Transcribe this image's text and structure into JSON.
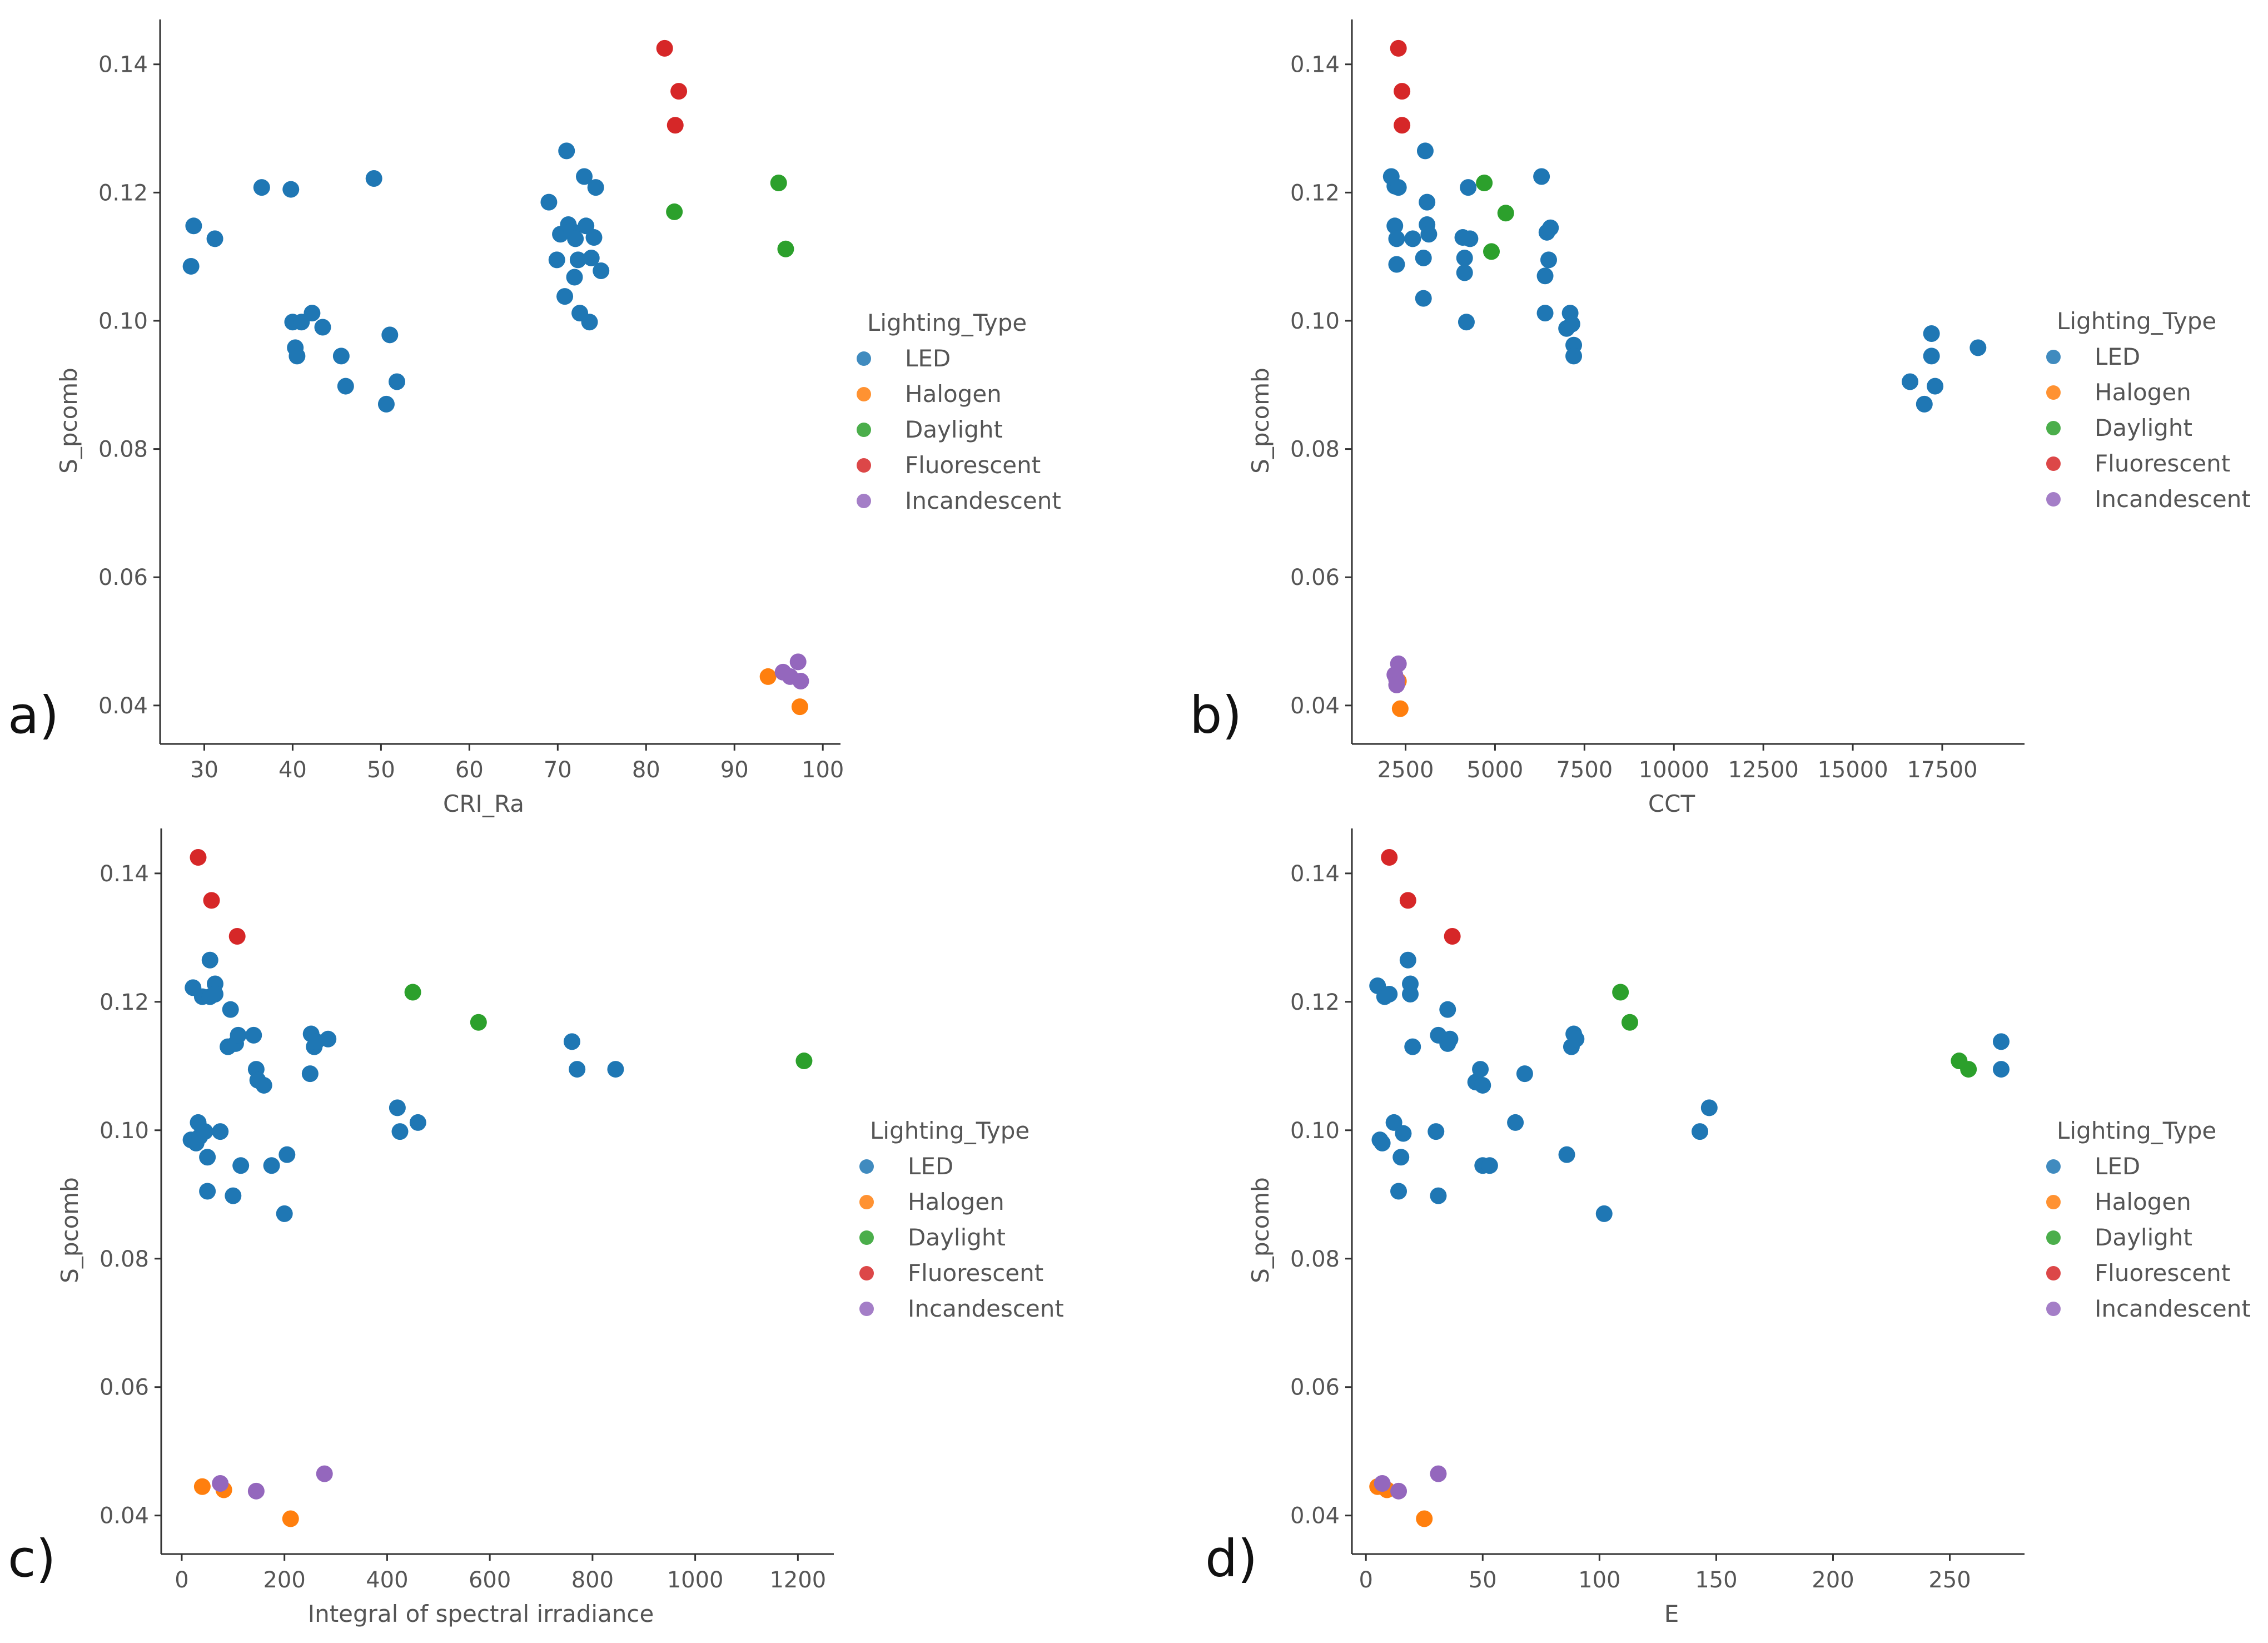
{
  "legend": {
    "title": "Lighting_Type",
    "entries": [
      {
        "name": "LED",
        "color": "#1f77b4"
      },
      {
        "name": "Halogen",
        "color": "#ff7f0e"
      },
      {
        "name": "Daylight",
        "color": "#2ca02c"
      },
      {
        "name": "Fluorescent",
        "color": "#d62728"
      },
      {
        "name": "Incandescent",
        "color": "#9467bd"
      }
    ]
  },
  "chart_data": [
    {
      "panel": "a)",
      "type": "scatter",
      "xlabel": "CRI_Ra",
      "ylabel": "S_pcomb",
      "xlim": [
        25,
        102
      ],
      "ylim": [
        0.034,
        0.147
      ],
      "xticks": [
        30,
        40,
        50,
        60,
        70,
        80,
        90,
        100
      ],
      "xtick_labels": [
        "30",
        "40",
        "50",
        "60",
        "70",
        "80",
        "90",
        "100"
      ],
      "yticks": [
        0.04,
        0.06,
        0.08,
        0.1,
        0.12,
        0.14
      ],
      "ytick_labels": [
        "0.04",
        "0.06",
        "0.08",
        "0.10",
        "0.12",
        "0.14"
      ],
      "series": [
        {
          "name": "LED",
          "points": [
            [
              28.5,
              0.1085
            ],
            [
              28.8,
              0.1148
            ],
            [
              31.2,
              0.1128
            ],
            [
              36.5,
              0.1208
            ],
            [
              39.8,
              0.1205
            ],
            [
              40.0,
              0.0998
            ],
            [
              40.3,
              0.0958
            ],
            [
              40.5,
              0.0945
            ],
            [
              41.0,
              0.0998
            ],
            [
              42.2,
              0.1012
            ],
            [
              43.4,
              0.099
            ],
            [
              45.5,
              0.0945
            ],
            [
              46.0,
              0.0898
            ],
            [
              49.2,
              0.1222
            ],
            [
              50.6,
              0.087
            ],
            [
              51.0,
              0.0978
            ],
            [
              51.8,
              0.0905
            ],
            [
              69.0,
              0.1185
            ],
            [
              69.9,
              0.1095
            ],
            [
              70.3,
              0.1135
            ],
            [
              70.8,
              0.1038
            ],
            [
              71.0,
              0.1265
            ],
            [
              71.2,
              0.115
            ],
            [
              71.6,
              0.114
            ],
            [
              71.9,
              0.1068
            ],
            [
              72.0,
              0.1128
            ],
            [
              72.3,
              0.1095
            ],
            [
              72.5,
              0.1012
            ],
            [
              73.0,
              0.1225
            ],
            [
              73.2,
              0.1148
            ],
            [
              73.6,
              0.0998
            ],
            [
              73.8,
              0.1098
            ],
            [
              74.1,
              0.113
            ],
            [
              74.3,
              0.1208
            ],
            [
              74.9,
              0.1078
            ]
          ]
        },
        {
          "name": "Halogen",
          "points": [
            [
              93.8,
              0.0445
            ],
            [
              97.4,
              0.0398
            ]
          ]
        },
        {
          "name": "Daylight",
          "points": [
            [
              83.2,
              0.117
            ],
            [
              95.0,
              0.1215
            ],
            [
              95.8,
              0.1112
            ]
          ]
        },
        {
          "name": "Fluorescent",
          "points": [
            [
              82.1,
              0.1425
            ],
            [
              83.3,
              0.1305
            ],
            [
              83.7,
              0.1358
            ]
          ]
        },
        {
          "name": "Incandescent",
          "points": [
            [
              95.5,
              0.0452
            ],
            [
              96.3,
              0.0445
            ],
            [
              97.2,
              0.0468
            ],
            [
              97.5,
              0.0438
            ]
          ]
        }
      ]
    },
    {
      "panel": "b)",
      "type": "scatter",
      "xlabel": "CCT",
      "ylabel": "S_pcomb",
      "xlim": [
        1000,
        19800
      ],
      "ylim": [
        0.034,
        0.147
      ],
      "xticks": [
        2500,
        5000,
        7500,
        10000,
        12500,
        15000,
        17500
      ],
      "xtick_labels": [
        "2500",
        "5000",
        "7500",
        "10000",
        "12500",
        "15000",
        "17500"
      ],
      "yticks": [
        0.04,
        0.06,
        0.08,
        0.1,
        0.12,
        0.14
      ],
      "ytick_labels": [
        "0.04",
        "0.06",
        "0.08",
        "0.10",
        "0.12",
        "0.14"
      ],
      "series": [
        {
          "name": "LED",
          "points": [
            [
              2100,
              0.1225
            ],
            [
              2200,
              0.121
            ],
            [
              2200,
              0.1148
            ],
            [
              2250,
              0.1128
            ],
            [
              2250,
              0.1088
            ],
            [
              2300,
              0.1208
            ],
            [
              2700,
              0.1128
            ],
            [
              3000,
              0.1098
            ],
            [
              3000,
              0.1035
            ],
            [
              3050,
              0.1265
            ],
            [
              3100,
              0.1185
            ],
            [
              3100,
              0.115
            ],
            [
              3150,
              0.1135
            ],
            [
              4100,
              0.113
            ],
            [
              4150,
              0.1098
            ],
            [
              4150,
              0.1075
            ],
            [
              4200,
              0.0998
            ],
            [
              4250,
              0.1208
            ],
            [
              4300,
              0.1128
            ],
            [
              6300,
              0.1225
            ],
            [
              6400,
              0.107
            ],
            [
              6400,
              0.1012
            ],
            [
              6450,
              0.1138
            ],
            [
              6500,
              0.1095
            ],
            [
              6550,
              0.1145
            ],
            [
              7000,
              0.0988
            ],
            [
              7100,
              0.1012
            ],
            [
              7150,
              0.0995
            ],
            [
              7200,
              0.0962
            ],
            [
              7200,
              0.0945
            ],
            [
              16600,
              0.0905
            ],
            [
              17000,
              0.087
            ],
            [
              17200,
              0.0945
            ],
            [
              17200,
              0.098
            ],
            [
              17300,
              0.0898
            ],
            [
              18500,
              0.0958
            ]
          ]
        },
        {
          "name": "Halogen",
          "points": [
            [
              2300,
              0.0438
            ],
            [
              2350,
              0.0395
            ]
          ]
        },
        {
          "name": "Daylight",
          "points": [
            [
              4700,
              0.1215
            ],
            [
              4900,
              0.1108
            ],
            [
              5300,
              0.1168
            ]
          ]
        },
        {
          "name": "Fluorescent",
          "points": [
            [
              2300,
              0.1425
            ],
            [
              2400,
              0.1358
            ],
            [
              2400,
              0.1305
            ]
          ]
        },
        {
          "name": "Incandescent",
          "points": [
            [
              2200,
              0.0448
            ],
            [
              2250,
              0.044
            ],
            [
              2300,
              0.0465
            ],
            [
              2250,
              0.0432
            ]
          ]
        }
      ]
    },
    {
      "panel": "c)",
      "type": "scatter",
      "xlabel": "Integral of spectral irradiance",
      "ylabel": "S_pcomb",
      "xlim": [
        -40,
        1270
      ],
      "ylim": [
        0.034,
        0.147
      ],
      "xticks": [
        0,
        200,
        400,
        600,
        800,
        1000,
        1200
      ],
      "xtick_labels": [
        "0",
        "200",
        "400",
        "600",
        "800",
        "1000",
        "1200"
      ],
      "yticks": [
        0.04,
        0.06,
        0.08,
        0.1,
        0.12,
        0.14
      ],
      "ytick_labels": [
        "0.04",
        "0.06",
        "0.08",
        "0.10",
        "0.12",
        "0.14"
      ],
      "series": [
        {
          "name": "LED",
          "points": [
            [
              18,
              0.0985
            ],
            [
              22,
              0.1222
            ],
            [
              28,
              0.098
            ],
            [
              32,
              0.1012
            ],
            [
              35,
              0.099
            ],
            [
              40,
              0.1208
            ],
            [
              45,
              0.0998
            ],
            [
              50,
              0.0958
            ],
            [
              50,
              0.0905
            ],
            [
              55,
              0.1265
            ],
            [
              55,
              0.1208
            ],
            [
              65,
              0.1228
            ],
            [
              65,
              0.1212
            ],
            [
              75,
              0.0998
            ],
            [
              90,
              0.113
            ],
            [
              95,
              0.1188
            ],
            [
              100,
              0.0898
            ],
            [
              105,
              0.1135
            ],
            [
              110,
              0.1148
            ],
            [
              115,
              0.0945
            ],
            [
              140,
              0.1148
            ],
            [
              145,
              0.1095
            ],
            [
              148,
              0.1078
            ],
            [
              160,
              0.107
            ],
            [
              175,
              0.0945
            ],
            [
              200,
              0.087
            ],
            [
              205,
              0.0962
            ],
            [
              250,
              0.1088
            ],
            [
              252,
              0.115
            ],
            [
              258,
              0.113
            ],
            [
              262,
              0.1138
            ],
            [
              285,
              0.1142
            ],
            [
              420,
              0.1035
            ],
            [
              425,
              0.0998
            ],
            [
              460,
              0.1012
            ],
            [
              760,
              0.1138
            ],
            [
              770,
              0.1095
            ],
            [
              845,
              0.1095
            ]
          ]
        },
        {
          "name": "Halogen",
          "points": [
            [
              40,
              0.0445
            ],
            [
              82,
              0.044
            ],
            [
              212,
              0.0395
            ]
          ]
        },
        {
          "name": "Daylight",
          "points": [
            [
              450,
              0.1215
            ],
            [
              578,
              0.1168
            ],
            [
              1212,
              0.1108
            ]
          ]
        },
        {
          "name": "Fluorescent",
          "points": [
            [
              32,
              0.1425
            ],
            [
              58,
              0.1358
            ],
            [
              108,
              0.1302
            ]
          ]
        },
        {
          "name": "Incandescent",
          "points": [
            [
              75,
              0.045
            ],
            [
              145,
              0.0438
            ],
            [
              278,
              0.0465
            ]
          ]
        }
      ]
    },
    {
      "panel": "d)",
      "type": "scatter",
      "xlabel": "E",
      "ylabel": "S_pcomb",
      "xlim": [
        -6,
        282
      ],
      "ylim": [
        0.034,
        0.147
      ],
      "xticks": [
        0,
        50,
        100,
        150,
        200,
        250
      ],
      "xtick_labels": [
        "0",
        "50",
        "100",
        "150",
        "200",
        "250"
      ],
      "yticks": [
        0.04,
        0.06,
        0.08,
        0.1,
        0.12,
        0.14
      ],
      "ytick_labels": [
        "0.04",
        "0.06",
        "0.08",
        "0.10",
        "0.12",
        "0.14"
      ],
      "series": [
        {
          "name": "LED",
          "points": [
            [
              5,
              0.1225
            ],
            [
              6,
              0.0985
            ],
            [
              7,
              0.098
            ],
            [
              8,
              0.1208
            ],
            [
              10,
              0.1212
            ],
            [
              12,
              0.1012
            ],
            [
              14,
              0.0905
            ],
            [
              15,
              0.0958
            ],
            [
              16,
              0.0995
            ],
            [
              18,
              0.1265
            ],
            [
              19,
              0.1228
            ],
            [
              19,
              0.1212
            ],
            [
              20,
              0.113
            ],
            [
              30,
              0.0998
            ],
            [
              31,
              0.0898
            ],
            [
              31,
              0.1148
            ],
            [
              35,
              0.1188
            ],
            [
              35,
              0.1135
            ],
            [
              36,
              0.1142
            ],
            [
              47,
              0.1075
            ],
            [
              49,
              0.1095
            ],
            [
              50,
              0.0945
            ],
            [
              50,
              0.107
            ],
            [
              53,
              0.0945
            ],
            [
              64,
              0.1012
            ],
            [
              68,
              0.1088
            ],
            [
              86,
              0.0962
            ],
            [
              88,
              0.113
            ],
            [
              89,
              0.115
            ],
            [
              90,
              0.1142
            ],
            [
              102,
              0.087
            ],
            [
              143,
              0.0998
            ],
            [
              147,
              0.1035
            ],
            [
              272,
              0.1138
            ],
            [
              272,
              0.1095
            ]
          ]
        },
        {
          "name": "Halogen",
          "points": [
            [
              5,
              0.0445
            ],
            [
              9,
              0.044
            ],
            [
              25,
              0.0395
            ]
          ]
        },
        {
          "name": "Daylight",
          "points": [
            [
              109,
              0.1215
            ],
            [
              113,
              0.1168
            ],
            [
              254,
              0.1108
            ],
            [
              258,
              0.1095
            ]
          ]
        },
        {
          "name": "Fluorescent",
          "points": [
            [
              10,
              0.1425
            ],
            [
              18,
              0.1358
            ],
            [
              37,
              0.1302
            ]
          ]
        },
        {
          "name": "Incandescent",
          "points": [
            [
              7,
              0.045
            ],
            [
              14,
              0.0438
            ],
            [
              31,
              0.0465
            ]
          ]
        }
      ]
    }
  ]
}
